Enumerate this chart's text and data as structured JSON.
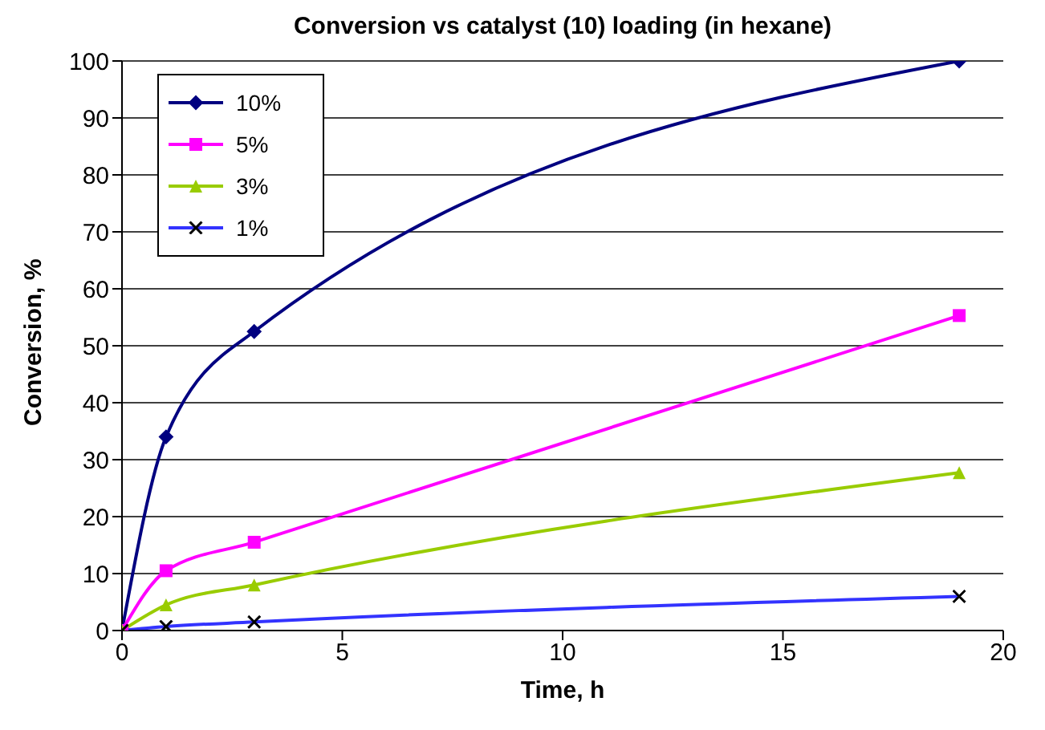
{
  "chart_data": {
    "type": "line",
    "title": "Conversion vs catalyst (10) loading (in hexane)",
    "xlabel": "Time, h",
    "ylabel": "Conversion, %",
    "x": [
      0,
      1,
      3,
      19
    ],
    "series": [
      {
        "name": "10%",
        "color": "#000080",
        "marker": "diamond",
        "values": [
          0,
          34,
          52.5,
          100
        ]
      },
      {
        "name": "5%",
        "color": "#ff00ff",
        "marker": "square",
        "values": [
          0,
          10.5,
          15.5,
          55.3
        ]
      },
      {
        "name": "3%",
        "color": "#99cc00",
        "marker": "triangle",
        "values": [
          0,
          4.5,
          8,
          27.7
        ]
      },
      {
        "name": "1%",
        "color": "#3333ff",
        "marker": "cross",
        "values": [
          0,
          0.7,
          1.5,
          6
        ]
      }
    ],
    "xlim": [
      0,
      20
    ],
    "xticks": [
      0,
      5,
      10,
      15,
      20
    ],
    "ylim": [
      0,
      100
    ],
    "yticks": [
      0,
      10,
      20,
      30,
      40,
      50,
      60,
      70,
      80,
      90,
      100
    ],
    "grid": "y",
    "legend": "top left",
    "line_style": "solid"
  }
}
